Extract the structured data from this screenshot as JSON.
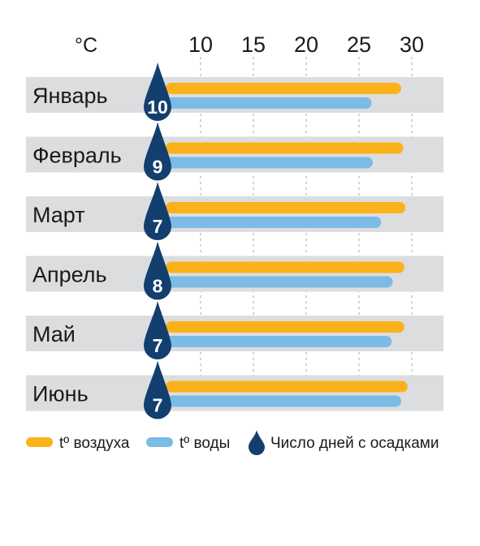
{
  "chart_data": {
    "type": "bar",
    "unit_label": "°C",
    "x_ticks": [
      10,
      15,
      20,
      25,
      30
    ],
    "xlim": [
      7,
      33
    ],
    "grid": "vertical",
    "categories": [
      "Январь",
      "Февраль",
      "Март",
      "Апрель",
      "Май",
      "Июнь"
    ],
    "series": [
      {
        "name": "tº воздуха",
        "color": "#fbb21a",
        "values": [
          29,
          29.2,
          29.4,
          29.3,
          29.3,
          29.6
        ]
      },
      {
        "name": "tº воды",
        "color": "#7bbbe6",
        "values": [
          26.2,
          26.3,
          27.1,
          28.2,
          28.1,
          29
        ]
      },
      {
        "name": "Число дней с осадками",
        "color": "#123f6e",
        "values": [
          10,
          9,
          7,
          8,
          7,
          7
        ]
      }
    ],
    "legend_position": "bottom"
  }
}
